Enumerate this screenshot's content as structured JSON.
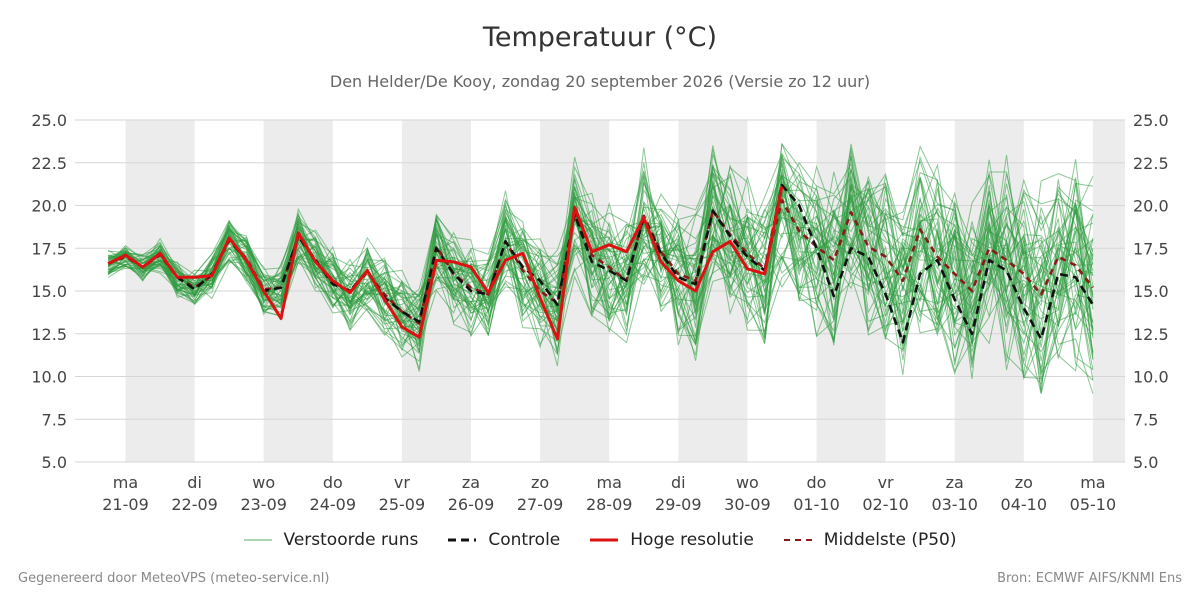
{
  "chart_data": {
    "type": "line",
    "title": "Temperatuur (°C)",
    "subtitle": "Den Helder/De Kooy, zondag 20 september 2026 (Versie zo 12 uur)",
    "ylim": [
      5,
      25
    ],
    "y_ticks": [
      "5.0",
      "7.5",
      "10.0",
      "12.5",
      "15.0",
      "17.5",
      "20.0",
      "22.5",
      "25.0"
    ],
    "x_range": [
      -0.72,
      14.0
    ],
    "x_ticks": [
      {
        "day": "ma",
        "date": "21-09"
      },
      {
        "day": "di",
        "date": "22-09"
      },
      {
        "day": "wo",
        "date": "23-09"
      },
      {
        "day": "do",
        "date": "24-09"
      },
      {
        "day": "vr",
        "date": "25-09"
      },
      {
        "day": "za",
        "date": "26-09"
      },
      {
        "day": "zo",
        "date": "27-09"
      },
      {
        "day": "ma",
        "date": "28-09"
      },
      {
        "day": "di",
        "date": "29-09"
      },
      {
        "day": "wo",
        "date": "30-09"
      },
      {
        "day": "do",
        "date": "01-10"
      },
      {
        "day": "vr",
        "date": "02-10"
      },
      {
        "day": "za",
        "date": "03-10"
      },
      {
        "day": "zo",
        "date": "04-10"
      },
      {
        "day": "ma",
        "date": "05-10"
      }
    ],
    "shaded_days": [
      0,
      2,
      4,
      6,
      8,
      10,
      12,
      14
    ],
    "grid": true,
    "legend_position": "bottom",
    "series": [
      {
        "name": "Controle",
        "color": "#111111",
        "dash": "8,5",
        "x": [
          -0.25,
          0,
          0.25,
          0.5,
          0.75,
          1,
          1.25,
          1.5,
          1.75,
          2,
          2.25,
          2.5,
          2.75,
          3,
          3.25,
          3.5,
          3.75,
          4,
          4.25,
          4.5,
          4.75,
          5,
          5.25,
          5.5,
          5.75,
          6,
          6.25,
          6.5,
          6.75,
          7,
          7.25,
          7.5,
          7.75,
          8,
          8.25,
          8.5,
          8.75,
          9,
          9.25,
          9.5,
          9.75,
          10,
          10.25,
          10.5,
          10.75,
          11,
          11.25,
          11.5,
          11.75,
          12,
          12.25,
          12.5,
          12.75,
          13,
          13.25,
          13.5,
          13.75,
          14
        ],
        "y": [
          16.6,
          17.1,
          16.4,
          17.2,
          15.8,
          15.1,
          16.0,
          18.0,
          16.8,
          15.0,
          15.2,
          18.2,
          16.8,
          15.4,
          15.0,
          16.2,
          14.6,
          13.8,
          13.2,
          17.5,
          16.0,
          15.0,
          14.8,
          17.9,
          16.4,
          15.6,
          14.2,
          19.5,
          16.7,
          16.2,
          15.6,
          19.3,
          17.2,
          15.8,
          15.4,
          19.7,
          18.2,
          17.0,
          16.2,
          21.2,
          20.0,
          17.5,
          14.7,
          17.5,
          17.0,
          14.8,
          12.0,
          16.0,
          16.8,
          14.5,
          12.5,
          16.8,
          16.2,
          14.0,
          12.2,
          16.0,
          15.8,
          14.2
        ]
      },
      {
        "name": "Hoge resolutie",
        "color": "#dd1111",
        "dash": "",
        "x": [
          -0.25,
          0,
          0.25,
          0.5,
          0.75,
          1,
          1.25,
          1.5,
          1.75,
          2,
          2.25,
          2.5,
          2.75,
          3,
          3.25,
          3.5,
          3.75,
          4,
          4.25,
          4.5,
          4.75,
          5,
          5.25,
          5.5,
          5.75,
          6,
          6.25,
          6.5,
          6.75,
          7,
          7.25,
          7.5,
          7.75,
          8,
          8.25,
          8.5,
          8.75,
          9,
          9.25,
          9.5
        ],
        "y": [
          16.6,
          17.1,
          16.4,
          17.2,
          15.8,
          15.8,
          15.9,
          18.1,
          16.8,
          15.0,
          13.4,
          18.4,
          16.7,
          15.6,
          14.9,
          16.2,
          14.5,
          12.9,
          12.3,
          16.8,
          16.7,
          16.4,
          14.9,
          16.8,
          17.2,
          14.6,
          12.2,
          19.9,
          17.3,
          17.7,
          17.3,
          19.3,
          16.7,
          15.6,
          15.0,
          17.3,
          17.9,
          16.3,
          16.0,
          21.1
        ]
      },
      {
        "name": "Middelste (P50)",
        "color": "#8b1a1a",
        "dash": "6,5",
        "x": [
          -0.25,
          0,
          0.25,
          0.5,
          0.75,
          1,
          1.25,
          1.5,
          1.75,
          2,
          2.25,
          2.5,
          2.75,
          3,
          3.25,
          3.5,
          3.75,
          4,
          4.25,
          4.5,
          4.75,
          5,
          5.25,
          5.5,
          5.75,
          6,
          6.25,
          6.5,
          6.75,
          7,
          7.25,
          7.5,
          7.75,
          8,
          8.25,
          8.5,
          8.75,
          9,
          9.25,
          9.5,
          9.75,
          10,
          10.25,
          10.5,
          10.75,
          11,
          11.25,
          11.5,
          11.75,
          12,
          12.25,
          12.5,
          12.75,
          13,
          13.25,
          13.5,
          13.75,
          14
        ],
        "y": [
          16.6,
          17.0,
          16.4,
          17.1,
          15.8,
          15.2,
          15.9,
          18.0,
          16.9,
          15.1,
          15.2,
          18.2,
          16.8,
          15.5,
          15.0,
          16.1,
          14.8,
          13.8,
          13.1,
          17.6,
          16.0,
          15.2,
          14.8,
          17.9,
          16.2,
          15.0,
          14.3,
          19.6,
          17.1,
          16.4,
          15.6,
          19.4,
          17.3,
          16.0,
          15.6,
          19.7,
          18.3,
          17.2,
          16.3,
          20.3,
          18.5,
          17.6,
          16.8,
          19.6,
          17.6,
          17.0,
          15.6,
          18.6,
          17.0,
          16.0,
          15.0,
          17.5,
          16.8,
          16.0,
          14.8,
          17.0,
          16.5,
          15.2
        ]
      }
    ],
    "ensemble": {
      "name": "Verstoorde runs",
      "color": "#2e9a3e",
      "count": 50,
      "spread_growth": 0.62
    }
  },
  "legend": [
    {
      "label": "Verstoorde runs",
      "icon": "thin-green-line"
    },
    {
      "label": "Controle",
      "icon": "black-dashed-line"
    },
    {
      "label": "Hoge resolutie",
      "icon": "red-solid-line"
    },
    {
      "label": "Middelste (P50)",
      "icon": "darkred-dashed-line"
    }
  ],
  "footer": {
    "left": "Gegenereerd door MeteoVPS (meteo-service.nl)",
    "right": "Bron: ECMWF AIFS/KNMI Ens"
  }
}
